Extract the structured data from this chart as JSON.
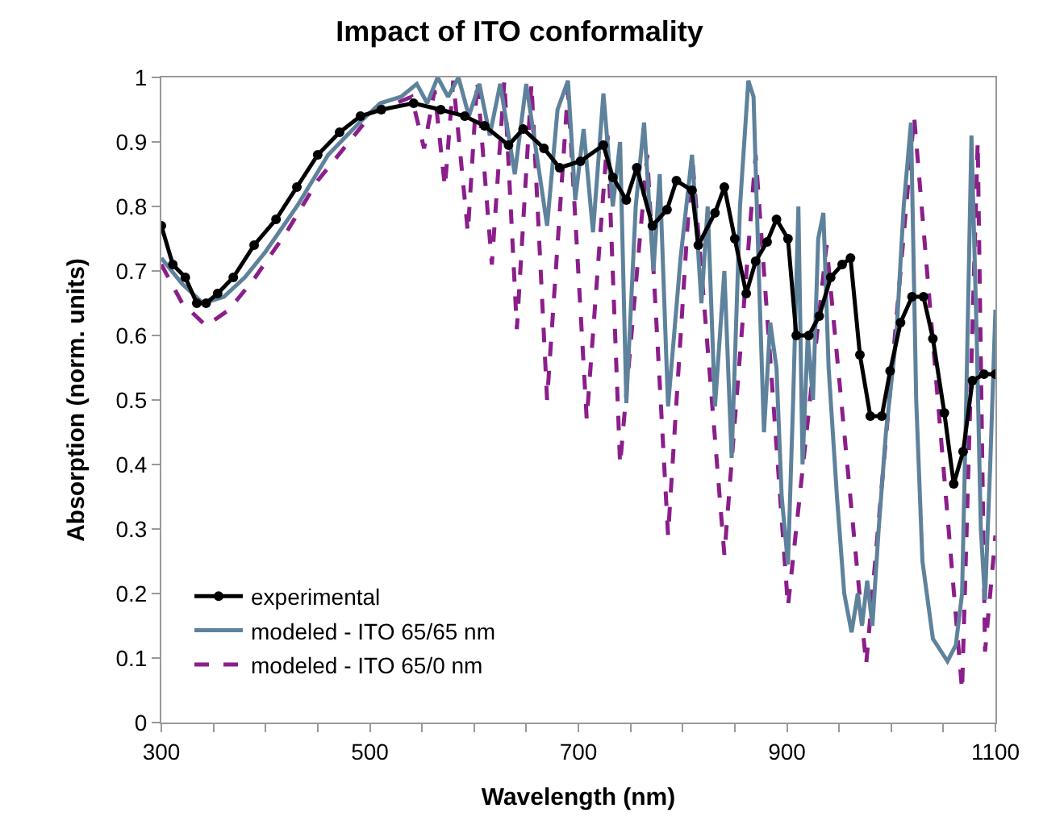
{
  "chart_data": {
    "type": "line",
    "title": "Impact of ITO conformality",
    "xlabel": "Wavelength (nm)",
    "ylabel": "Absorption (norm. units)",
    "xlim": [
      300,
      1100
    ],
    "xticks": [
      300,
      {
        "value": 350,
        "label": null
      },
      {
        "value": 400,
        "label": null
      },
      {
        "value": 450,
        "label": null
      },
      500,
      {
        "value": 550,
        "label": null
      },
      {
        "value": 600,
        "label": null
      },
      {
        "value": 650,
        "label": null
      },
      700,
      {
        "value": 750,
        "label": null
      },
      {
        "value": 800,
        "label": null
      },
      {
        "value": 850,
        "label": null
      },
      900,
      {
        "value": 950,
        "label": null
      },
      {
        "value": 1000,
        "label": null
      },
      {
        "value": 1050,
        "label": null
      },
      1100
    ],
    "ylim": [
      0,
      1
    ],
    "yticks": [
      0,
      0.1,
      0.2,
      0.3,
      0.4,
      0.5,
      0.6,
      0.7,
      0.8,
      0.9,
      1
    ],
    "legend": "bottom left",
    "series": [
      {
        "name": "experimental",
        "color": "#000000",
        "marker": "circle",
        "line_style": "solid",
        "x": [
          300,
          311,
          323,
          334,
          343,
          354,
          369,
          389,
          410,
          430,
          450,
          471,
          491,
          511,
          542,
          568,
          591,
          610,
          633,
          647,
          667,
          682,
          702,
          724,
          733,
          746,
          756,
          771,
          785,
          794,
          809,
          815,
          831,
          840,
          850,
          861,
          870,
          881,
          890,
          901,
          909,
          921,
          931,
          942,
          953,
          961,
          970,
          980,
          991,
          999,
          1009,
          1020,
          1031,
          1040,
          1051,
          1060,
          1069,
          1078,
          1089,
          1100
        ],
        "values": [
          0.77,
          0.71,
          0.69,
          0.65,
          0.65,
          0.665,
          0.69,
          0.74,
          0.78,
          0.83,
          0.88,
          0.915,
          0.94,
          0.95,
          0.96,
          0.95,
          0.94,
          0.925,
          0.895,
          0.92,
          0.89,
          0.86,
          0.87,
          0.895,
          0.845,
          0.81,
          0.86,
          0.77,
          0.795,
          0.84,
          0.825,
          0.74,
          0.79,
          0.83,
          0.75,
          0.665,
          0.715,
          0.745,
          0.78,
          0.75,
          0.6,
          0.6,
          0.63,
          0.69,
          0.71,
          0.72,
          0.57,
          0.475,
          0.475,
          0.545,
          0.62,
          0.66,
          0.66,
          0.595,
          0.48,
          0.37,
          0.42,
          0.53,
          0.54,
          0.54
        ]
      },
      {
        "name": "modeled - ITO 65/65 nm",
        "color": "#5f829c",
        "marker": "none",
        "line_style": "solid",
        "x": [
          300,
          320,
          340,
          360,
          380,
          400,
          430,
          460,
          490,
          510,
          530,
          545,
          555,
          565,
          575,
          585,
          595,
          605,
          615,
          625,
          639,
          650,
          660,
          670,
          680,
          690,
          697,
          705,
          714,
          724,
          733,
          740,
          746,
          755,
          763,
          772,
          778,
          786,
          798,
          809,
          818,
          824,
          831,
          840,
          847,
          855,
          863,
          868,
          873,
          878,
          884,
          890,
          895,
          901,
          906,
          911,
          915,
          920,
          925,
          930,
          935,
          940,
          948,
          955,
          962,
          968,
          972,
          977,
          982,
          988,
          995,
          1005,
          1012,
          1019,
          1024,
          1030,
          1040,
          1048,
          1054,
          1062,
          1068,
          1072,
          1077,
          1082,
          1086,
          1090,
          1095,
          1100
        ],
        "values": [
          0.72,
          0.68,
          0.65,
          0.66,
          0.69,
          0.73,
          0.8,
          0.88,
          0.93,
          0.96,
          0.97,
          0.99,
          0.96,
          1.0,
          0.97,
          1.0,
          0.94,
          0.99,
          0.91,
          0.99,
          0.85,
          0.99,
          0.88,
          0.77,
          0.95,
          0.995,
          0.81,
          0.92,
          0.76,
          0.975,
          0.8,
          0.9,
          0.495,
          0.8,
          0.93,
          0.7,
          0.85,
          0.49,
          0.72,
          0.88,
          0.65,
          0.8,
          0.49,
          0.7,
          0.41,
          0.8,
          0.995,
          0.97,
          0.7,
          0.45,
          0.62,
          0.55,
          0.35,
          0.245,
          0.5,
          0.8,
          0.4,
          0.6,
          0.5,
          0.75,
          0.79,
          0.55,
          0.35,
          0.2,
          0.14,
          0.2,
          0.15,
          0.22,
          0.15,
          0.3,
          0.45,
          0.6,
          0.8,
          0.93,
          0.5,
          0.25,
          0.13,
          0.11,
          0.095,
          0.12,
          0.2,
          0.5,
          0.91,
          0.6,
          0.3,
          0.19,
          0.4,
          0.64
        ]
      },
      {
        "name": "modeled - ITO 65/0 nm",
        "color": "#8b1e8b",
        "marker": "none",
        "line_style": "dashed",
        "x": [
          300,
          320,
          343,
          365,
          390,
          420,
          450,
          480,
          505,
          525,
          540,
          552,
          562,
          572,
          580,
          594,
          603,
          617,
          629,
          641,
          655,
          670,
          690,
          708,
          728,
          740,
          766,
          786,
          809,
          840,
          870,
          901,
          938,
          976,
          1022,
          1068,
          1083,
          1090,
          1100
        ],
        "values": [
          0.71,
          0.65,
          0.615,
          0.64,
          0.69,
          0.76,
          0.84,
          0.9,
          0.95,
          0.96,
          0.97,
          0.89,
          0.98,
          0.83,
          0.995,
          0.76,
          0.995,
          0.71,
          0.995,
          0.61,
          0.99,
          0.5,
          0.98,
          0.47,
          0.91,
          0.4,
          0.88,
          0.29,
          0.88,
          0.26,
          0.88,
          0.18,
          0.74,
          0.09,
          0.94,
          0.05,
          0.9,
          0.11,
          0.29
        ]
      }
    ]
  }
}
